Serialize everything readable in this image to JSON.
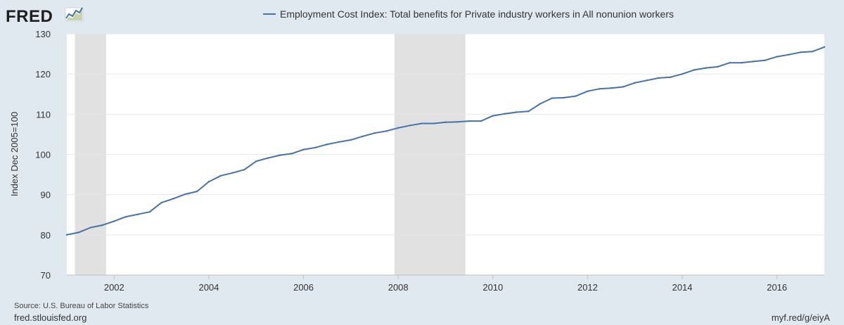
{
  "logo": {
    "text": "FRED"
  },
  "links": {
    "site": "fred.stlouisfed.org",
    "short": "myf.red/g/eiyA"
  },
  "source": "Source: U.S. Bureau of Labor Statistics",
  "colors": {
    "series": "#4572a7",
    "recession": "#e1e1e1",
    "plot_bg": "#ffffff",
    "page_bg": "#e1e9f0",
    "grid": "#e6e6e6"
  },
  "chart_data": {
    "type": "line",
    "title": "Employment Cost Index: Total benefits for Private industry workers in All nonunion workers",
    "xlabel": "",
    "ylabel": "Index Dec 2005=100",
    "xlim": [
      2001.0,
      2017.0
    ],
    "ylim": [
      70,
      130
    ],
    "yticks": [
      70,
      80,
      90,
      100,
      110,
      120,
      130
    ],
    "xticks": [
      2002,
      2004,
      2006,
      2008,
      2010,
      2012,
      2014,
      2016
    ],
    "grid": true,
    "legend": "top-center",
    "recessions": [
      [
        2001.17,
        2001.83
      ],
      [
        2007.92,
        2009.42
      ]
    ],
    "series": [
      {
        "name": "Employment Cost Index: Total benefits for Private industry workers in All nonunion workers",
        "x": [
          2001.0,
          2001.25,
          2001.5,
          2001.75,
          2002.0,
          2002.25,
          2002.5,
          2002.75,
          2003.0,
          2003.25,
          2003.5,
          2003.75,
          2004.0,
          2004.25,
          2004.5,
          2004.75,
          2005.0,
          2005.25,
          2005.5,
          2005.75,
          2006.0,
          2006.25,
          2006.5,
          2006.75,
          2007.0,
          2007.25,
          2007.5,
          2007.75,
          2008.0,
          2008.25,
          2008.5,
          2008.75,
          2009.0,
          2009.25,
          2009.5,
          2009.75,
          2010.0,
          2010.25,
          2010.5,
          2010.75,
          2011.0,
          2011.25,
          2011.5,
          2011.75,
          2012.0,
          2012.25,
          2012.5,
          2012.75,
          2013.0,
          2013.25,
          2013.5,
          2013.75,
          2014.0,
          2014.25,
          2014.5,
          2014.75,
          2015.0,
          2015.25,
          2015.5,
          2015.75,
          2016.0,
          2016.25,
          2016.5,
          2016.75,
          2017.0
        ],
        "values": [
          80.0,
          80.6,
          81.8,
          82.4,
          83.4,
          84.5,
          85.1,
          85.7,
          88.0,
          89.0,
          90.1,
          90.8,
          93.2,
          94.7,
          95.4,
          96.2,
          98.3,
          99.1,
          99.8,
          100.2,
          101.2,
          101.7,
          102.5,
          103.1,
          103.6,
          104.5,
          105.3,
          105.8,
          106.6,
          107.2,
          107.7,
          107.7,
          108.0,
          108.1,
          108.3,
          108.3,
          109.6,
          110.1,
          110.5,
          110.7,
          112.6,
          114.0,
          114.1,
          114.5,
          115.7,
          116.3,
          116.5,
          116.8,
          117.8,
          118.4,
          119.0,
          119.2,
          120.0,
          121.0,
          121.5,
          121.8,
          122.8,
          122.8,
          123.1,
          123.4,
          124.3,
          124.8,
          125.4,
          125.6,
          126.7
        ]
      }
    ]
  }
}
